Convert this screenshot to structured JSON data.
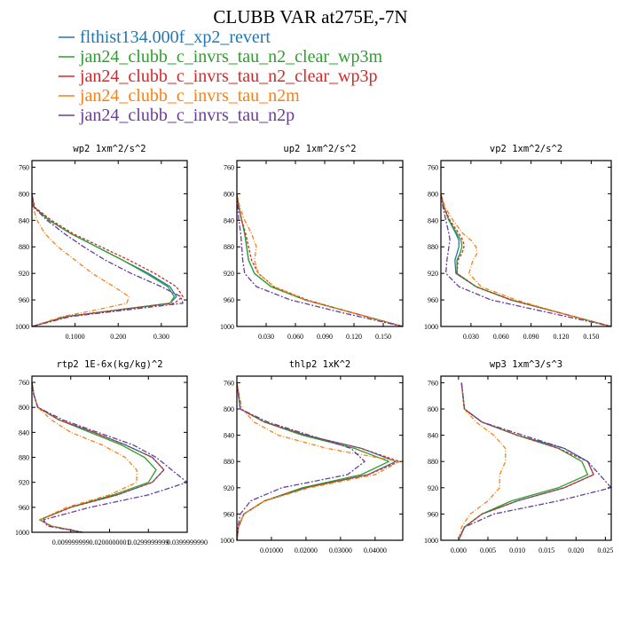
{
  "title": "CLUBB VAR at275E,-7N",
  "legend": [
    {
      "label": "flthist134.000f_xp2_revert",
      "color": "#1f77b4"
    },
    {
      "label": "jan24_clubb_c_invrs_tau_n2_clear_wp3m",
      "color": "#2ca02c"
    },
    {
      "label": "jan24_clubb_c_invrs_tau_n2_clear_wp3p",
      "color": "#d62728"
    },
    {
      "label": "jan24_clubb_c_invrs_tau_n2m",
      "color": "#ff7f0e"
    },
    {
      "label": "jan24_clubb_c_invrs_tau_n2p",
      "color": "#6a3d9a"
    }
  ],
  "chart_data": [
    {
      "type": "line",
      "title": "wp2  1xm^2/s^2",
      "xlim": [
        0,
        0.36
      ],
      "ylim": [
        1000,
        750
      ],
      "xticks": [
        0.1,
        0.2,
        0.3
      ],
      "xtick_labels": [
        "0.1000",
        "0.200",
        "0.300"
      ],
      "yticks": [
        760,
        800,
        840,
        880,
        920,
        960,
        1000
      ],
      "ytick_labels": [
        "760",
        "800",
        "840",
        "880",
        "920",
        "960",
        "1000"
      ],
      "y": [
        800,
        820,
        840,
        860,
        880,
        900,
        920,
        940,
        955,
        965,
        975,
        985,
        1000
      ],
      "series": [
        {
          "color": "#1f77b4",
          "values": [
            0,
            0.005,
            0.04,
            0.09,
            0.15,
            0.21,
            0.27,
            0.32,
            0.335,
            0.32,
            0.2,
            0.08,
            0
          ]
        },
        {
          "color": "#2ca02c",
          "values": [
            0,
            0.005,
            0.04,
            0.09,
            0.15,
            0.21,
            0.265,
            0.315,
            0.33,
            0.32,
            0.2,
            0.08,
            0
          ]
        },
        {
          "color": "#d62728",
          "values": [
            0,
            0.006,
            0.045,
            0.095,
            0.16,
            0.225,
            0.285,
            0.335,
            0.35,
            0.33,
            0.2,
            0.08,
            0
          ]
        },
        {
          "color": "#ff7f0e",
          "values": [
            0,
            0.002,
            0.012,
            0.03,
            0.06,
            0.1,
            0.14,
            0.19,
            0.225,
            0.22,
            0.15,
            0.07,
            0
          ]
        },
        {
          "color": "#6a3d9a",
          "values": [
            0,
            0.004,
            0.035,
            0.075,
            0.12,
            0.17,
            0.23,
            0.3,
            0.345,
            0.35,
            0.22,
            0.09,
            0
          ]
        }
      ]
    },
    {
      "type": "line",
      "title": "up2  1xm^2/s^2",
      "xlim": [
        0,
        0.17
      ],
      "ylim": [
        1000,
        750
      ],
      "xticks": [
        0.03,
        0.06,
        0.09,
        0.12,
        0.15
      ],
      "xtick_labels": [
        "0.030",
        "0.060",
        "0.090",
        "0.120",
        "0.150"
      ],
      "yticks": [
        760,
        800,
        840,
        880,
        920,
        960,
        1000
      ],
      "ytick_labels": [
        "760",
        "800",
        "840",
        "880",
        "920",
        "960",
        "1000"
      ],
      "y": [
        800,
        820,
        840,
        860,
        880,
        900,
        920,
        940,
        960,
        980,
        1000
      ],
      "series": [
        {
          "color": "#1f77b4",
          "values": [
            0,
            0.002,
            0.005,
            0.008,
            0.01,
            0.012,
            0.018,
            0.035,
            0.07,
            0.12,
            0.17
          ]
        },
        {
          "color": "#2ca02c",
          "values": [
            0,
            0.002,
            0.005,
            0.008,
            0.01,
            0.012,
            0.018,
            0.035,
            0.07,
            0.12,
            0.17
          ]
        },
        {
          "color": "#d62728",
          "values": [
            0,
            0.002,
            0.005,
            0.009,
            0.012,
            0.015,
            0.022,
            0.038,
            0.072,
            0.12,
            0.17
          ]
        },
        {
          "color": "#ff7f0e",
          "values": [
            0,
            0.003,
            0.008,
            0.015,
            0.02,
            0.018,
            0.022,
            0.038,
            0.07,
            0.12,
            0.17
          ]
        },
        {
          "color": "#6a3d9a",
          "values": [
            0,
            0.001,
            0.002,
            0.004,
            0.005,
            0.006,
            0.008,
            0.02,
            0.055,
            0.11,
            0.17
          ]
        }
      ]
    },
    {
      "type": "line",
      "title": "vp2  1xm^2/s^2",
      "xlim": [
        0,
        0.17
      ],
      "ylim": [
        1000,
        750
      ],
      "xticks": [
        0.03,
        0.06,
        0.09,
        0.12,
        0.15
      ],
      "xtick_labels": [
        "0.030",
        "0.060",
        "0.090",
        "0.120",
        "0.150"
      ],
      "yticks": [
        760,
        800,
        840,
        880,
        920,
        960,
        1000
      ],
      "ytick_labels": [
        "760",
        "800",
        "840",
        "880",
        "920",
        "960",
        "1000"
      ],
      "y": [
        800,
        820,
        840,
        860,
        870,
        880,
        890,
        900,
        920,
        940,
        960,
        980,
        1000
      ],
      "series": [
        {
          "color": "#1f77b4",
          "values": [
            0,
            0.003,
            0.008,
            0.015,
            0.018,
            0.018,
            0.016,
            0.014,
            0.015,
            0.035,
            0.07,
            0.12,
            0.17
          ]
        },
        {
          "color": "#2ca02c",
          "values": [
            0,
            0.003,
            0.008,
            0.016,
            0.02,
            0.021,
            0.019,
            0.016,
            0.016,
            0.035,
            0.07,
            0.12,
            0.17
          ]
        },
        {
          "color": "#d62728",
          "values": [
            0,
            0.003,
            0.009,
            0.018,
            0.022,
            0.023,
            0.021,
            0.017,
            0.016,
            0.035,
            0.07,
            0.12,
            0.17
          ]
        },
        {
          "color": "#ff7f0e",
          "values": [
            0,
            0.004,
            0.012,
            0.022,
            0.03,
            0.035,
            0.036,
            0.032,
            0.028,
            0.04,
            0.075,
            0.12,
            0.17
          ]
        },
        {
          "color": "#6a3d9a",
          "values": [
            0,
            0.002,
            0.005,
            0.008,
            0.009,
            0.008,
            0.007,
            0.006,
            0.005,
            0.018,
            0.05,
            0.11,
            0.17
          ]
        }
      ]
    },
    {
      "type": "line",
      "title": "rtp2  1E-6x(kg/kg)^2",
      "xlim": [
        0,
        0.04
      ],
      "ylim": [
        1000,
        750
      ],
      "xticks": [
        0.01,
        0.02,
        0.03,
        0.04
      ],
      "xtick_labels": [
        "0.009999999",
        "0.0200000001",
        "0.0299999999",
        "0.0399999990"
      ],
      "yticks": [
        760,
        800,
        840,
        880,
        920,
        960,
        1000
      ],
      "ytick_labels": [
        "760",
        "800",
        "840",
        "880",
        "920",
        "960",
        "1000"
      ],
      "y": [
        760,
        780,
        800,
        820,
        840,
        860,
        880,
        900,
        920,
        940,
        960,
        980,
        990,
        1000
      ],
      "series": [
        {
          "color": "#1f77b4",
          "values": [
            0,
            0.0005,
            0.0015,
            0.007,
            0.016,
            0.024,
            0.031,
            0.034,
            0.031,
            0.022,
            0.01,
            0.002,
            0.005,
            0.013
          ]
        },
        {
          "color": "#2ca02c",
          "values": [
            0,
            0.0005,
            0.0015,
            0.007,
            0.015,
            0.023,
            0.029,
            0.032,
            0.03,
            0.021,
            0.01,
            0.002,
            0.005,
            0.013
          ]
        },
        {
          "color": "#d62728",
          "values": [
            0,
            0.0005,
            0.0015,
            0.007,
            0.016,
            0.024,
            0.031,
            0.034,
            0.031,
            0.022,
            0.01,
            0.002,
            0.005,
            0.013
          ]
        },
        {
          "color": "#ff7f0e",
          "values": [
            0,
            0.0005,
            0.0015,
            0.005,
            0.01,
            0.018,
            0.024,
            0.027,
            0.027,
            0.02,
            0.009,
            0.002,
            0.005,
            0.013
          ]
        },
        {
          "color": "#6a3d9a",
          "values": [
            0,
            0.0005,
            0.0015,
            0.008,
            0.017,
            0.026,
            0.032,
            0.036,
            0.04,
            0.03,
            0.015,
            0.003,
            0.004,
            0.013
          ]
        }
      ]
    },
    {
      "type": "line",
      "title": "thlp2  1xK^2",
      "xlim": [
        0,
        0.048
      ],
      "ylim": [
        1000,
        750
      ],
      "xticks": [
        0.01,
        0.02,
        0.03,
        0.04
      ],
      "xtick_labels": [
        "0.01000",
        "0.02000",
        "0.03000",
        "0.04000"
      ],
      "yticks": [
        760,
        800,
        840,
        880,
        920,
        960,
        1000
      ],
      "ytick_labels": [
        "760",
        "800",
        "840",
        "880",
        "920",
        "960",
        "1000"
      ],
      "y": [
        760,
        800,
        820,
        840,
        860,
        880,
        900,
        920,
        940,
        960,
        980,
        1000
      ],
      "series": [
        {
          "color": "#1f77b4",
          "values": [
            0,
            0.001,
            0.008,
            0.02,
            0.036,
            0.046,
            0.038,
            0.02,
            0.008,
            0.002,
            0.0005,
            0
          ]
        },
        {
          "color": "#2ca02c",
          "values": [
            0,
            0.001,
            0.008,
            0.019,
            0.034,
            0.044,
            0.036,
            0.019,
            0.008,
            0.002,
            0.0005,
            0
          ]
        },
        {
          "color": "#d62728",
          "values": [
            0,
            0.001,
            0.008,
            0.02,
            0.036,
            0.047,
            0.038,
            0.02,
            0.008,
            0.002,
            0.0005,
            0
          ]
        },
        {
          "color": "#ff7f0e",
          "values": [
            0,
            0.0015,
            0.005,
            0.012,
            0.026,
            0.047,
            0.04,
            0.021,
            0.008,
            0.002,
            0.0005,
            0
          ]
        },
        {
          "color": "#6a3d9a",
          "values": [
            0,
            0.001,
            0.009,
            0.021,
            0.033,
            0.037,
            0.032,
            0.013,
            0.004,
            0.001,
            0.0003,
            0
          ]
        }
      ]
    },
    {
      "type": "line",
      "title": "wp3  1xm^3/s^3",
      "xlim": [
        -0.003,
        0.026
      ],
      "ylim": [
        1000,
        750
      ],
      "xticks": [
        0,
        0.005,
        0.01,
        0.015,
        0.02,
        0.025
      ],
      "xtick_labels": [
        "0.000",
        "0.005",
        "0.010",
        "0.015",
        "0.020",
        "0.025"
      ],
      "yticks": [
        760,
        800,
        840,
        880,
        920,
        960,
        1000
      ],
      "ytick_labels": [
        "760",
        "800",
        "840",
        "880",
        "920",
        "960",
        "1000"
      ],
      "y": [
        760,
        800,
        820,
        840,
        860,
        880,
        900,
        920,
        940,
        960,
        980,
        1000
      ],
      "series": [
        {
          "color": "#1f77b4",
          "values": [
            0.0005,
            0.001,
            0.004,
            0.01,
            0.018,
            0.022,
            0.023,
            0.018,
            0.01,
            0.004,
            0.001,
            0
          ]
        },
        {
          "color": "#2ca02c",
          "values": [
            0.0005,
            0.001,
            0.004,
            0.01,
            0.017,
            0.021,
            0.022,
            0.017,
            0.009,
            0.004,
            0.001,
            0
          ]
        },
        {
          "color": "#d62728",
          "values": [
            0.0005,
            0.001,
            0.004,
            0.01,
            0.017,
            0.022,
            0.023,
            0.018,
            0.01,
            0.004,
            0.001,
            0
          ]
        },
        {
          "color": "#ff7f0e",
          "values": [
            0.0005,
            0.001,
            0.003,
            0.006,
            0.008,
            0.008,
            0.007,
            0.007,
            0.005,
            0.002,
            0.0005,
            0
          ]
        },
        {
          "color": "#6a3d9a",
          "values": [
            0.0005,
            0.001,
            0.004,
            0.011,
            0.018,
            0.022,
            0.024,
            0.026,
            0.017,
            0.006,
            0.001,
            0
          ]
        }
      ]
    }
  ]
}
